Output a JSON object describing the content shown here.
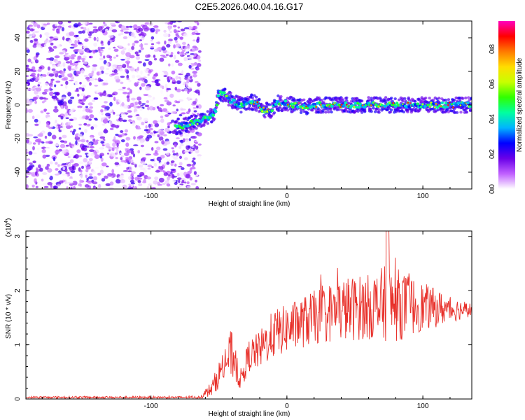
{
  "chart_data": [
    {
      "type": "heatmap",
      "title": "C2E5.2026.040.04.16.G17",
      "xlabel": "Height of straight line (km)",
      "ylabel": "Frequency (Hz)",
      "xlim": [
        -192,
        136
      ],
      "ylim": [
        -50,
        50
      ],
      "xticks": [
        {
          "v": -100,
          "label": "-100"
        },
        {
          "v": 0,
          "label": "0"
        },
        {
          "v": 100,
          "label": "100"
        }
      ],
      "yticks": [
        {
          "v": 40,
          "label": "40"
        },
        {
          "v": 20,
          "label": "20"
        },
        {
          "v": 0,
          "label": "0"
        },
        {
          "v": -20,
          "label": "-20"
        },
        {
          "v": -40,
          "label": "-40"
        }
      ],
      "noise_region_x": [
        -192,
        -64
      ],
      "ridge": [
        {
          "x": -82,
          "y": -13
        },
        {
          "x": -74,
          "y": -12
        },
        {
          "x": -66,
          "y": -10
        },
        {
          "x": -58,
          "y": -8
        },
        {
          "x": -52,
          "y": -3
        },
        {
          "x": -50,
          "y": 8
        },
        {
          "x": -46,
          "y": 6
        },
        {
          "x": -40,
          "y": 2
        },
        {
          "x": -34,
          "y": 0
        },
        {
          "x": -28,
          "y": 2
        },
        {
          "x": -22,
          "y": 1
        },
        {
          "x": -18,
          "y": -3
        },
        {
          "x": -12,
          "y": -3
        },
        {
          "x": -8,
          "y": 1
        },
        {
          "x": -2,
          "y": 1
        },
        {
          "x": 6,
          "y": 0
        },
        {
          "x": 14,
          "y": -1
        },
        {
          "x": 22,
          "y": 0
        },
        {
          "x": 36,
          "y": 0
        },
        {
          "x": 60,
          "y": 0
        },
        {
          "x": 90,
          "y": 0
        },
        {
          "x": 110,
          "y": 0
        },
        {
          "x": 136,
          "y": 0
        }
      ],
      "colorbar": {
        "label": "Normalized spectral amplitude",
        "ticks": [
          {
            "v": 0.0,
            "label": "0.0"
          },
          {
            "v": 0.2,
            "label": "0.2"
          },
          {
            "v": 0.4,
            "label": "0.4"
          },
          {
            "v": 0.6,
            "label": "0.6"
          },
          {
            "v": 0.8,
            "label": "0.8"
          }
        ],
        "range": [
          0,
          0.96
        ],
        "colors": [
          "#ffffff",
          "#c060ff",
          "#6a00e8",
          "#0000ff",
          "#00b4ff",
          "#00ffa0",
          "#30ff00",
          "#c8ff00",
          "#ffdd00",
          "#ff7a00",
          "#ff0000",
          "#ff00c0"
        ]
      }
    },
    {
      "type": "line",
      "xlabel": "Height of straight line (km)",
      "ylabel": "SNR (10 * v/v)",
      "ylabel_exponent": "(x10",
      "ylabel_exponent_power": "4",
      "ylabel_exponent_close": ")",
      "xlim": [
        -192,
        136
      ],
      "ylim": [
        0,
        3.1
      ],
      "xticks": [
        {
          "v": -100,
          "label": "-100"
        },
        {
          "v": 0,
          "label": "0"
        },
        {
          "v": 100,
          "label": "100"
        }
      ],
      "yticks": [
        {
          "v": 0,
          "label": "0"
        },
        {
          "v": 1,
          "label": "1"
        },
        {
          "v": 2,
          "label": "2"
        },
        {
          "v": 3,
          "label": "3"
        }
      ],
      "color": "#e8302a",
      "envelope": [
        {
          "x": -192,
          "mean": 0.03,
          "amp": 0.02
        },
        {
          "x": -64,
          "mean": 0.03,
          "amp": 0.02
        },
        {
          "x": -55,
          "mean": 0.2,
          "amp": 0.15
        },
        {
          "x": -45,
          "mean": 0.7,
          "amp": 0.35
        },
        {
          "x": -40,
          "mean": 0.85,
          "amp": 0.5
        },
        {
          "x": -34,
          "mean": 0.35,
          "amp": 0.2
        },
        {
          "x": -28,
          "mean": 0.8,
          "amp": 0.3
        },
        {
          "x": -20,
          "mean": 0.9,
          "amp": 0.35
        },
        {
          "x": -10,
          "mean": 1.2,
          "amp": 0.45
        },
        {
          "x": 0,
          "mean": 1.3,
          "amp": 0.45
        },
        {
          "x": 20,
          "mean": 1.5,
          "amp": 0.5
        },
        {
          "x": 40,
          "mean": 1.65,
          "amp": 0.6
        },
        {
          "x": 60,
          "mean": 1.7,
          "amp": 0.6
        },
        {
          "x": 75,
          "mean": 1.75,
          "amp": 0.75
        },
        {
          "x": 100,
          "mean": 1.7,
          "amp": 0.45
        },
        {
          "x": 120,
          "mean": 1.65,
          "amp": 0.25
        },
        {
          "x": 136,
          "mean": 1.65,
          "amp": 0.12
        }
      ]
    }
  ]
}
